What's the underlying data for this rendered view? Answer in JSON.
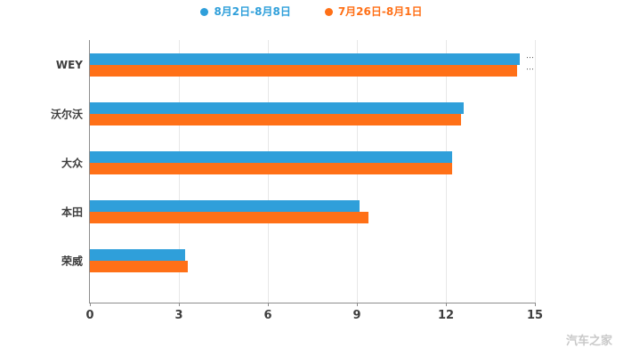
{
  "chart_data": {
    "type": "bar",
    "orientation": "horizontal",
    "title": "",
    "categories": [
      "WEY",
      "沃尔沃",
      "大众",
      "本田",
      "荣威"
    ],
    "series": [
      {
        "name": "8月2日-8月8日",
        "color": "#2f9fda",
        "values": [
          14.5,
          12.6,
          12.2,
          9.1,
          3.2
        ]
      },
      {
        "name": "7月26日-8月1日",
        "color": "#ff7017",
        "values": [
          14.4,
          12.5,
          12.2,
          9.4,
          3.3
        ]
      }
    ],
    "xlabel": "",
    "ylabel": "",
    "xlim": [
      0,
      15
    ],
    "x_ticks": [
      0,
      3,
      6,
      9,
      12,
      15
    ],
    "grid": true,
    "legend_position": "top"
  },
  "annotations": {
    "clipped_label_mark": "⋯"
  },
  "watermark": {
    "text": "汽车之家"
  }
}
